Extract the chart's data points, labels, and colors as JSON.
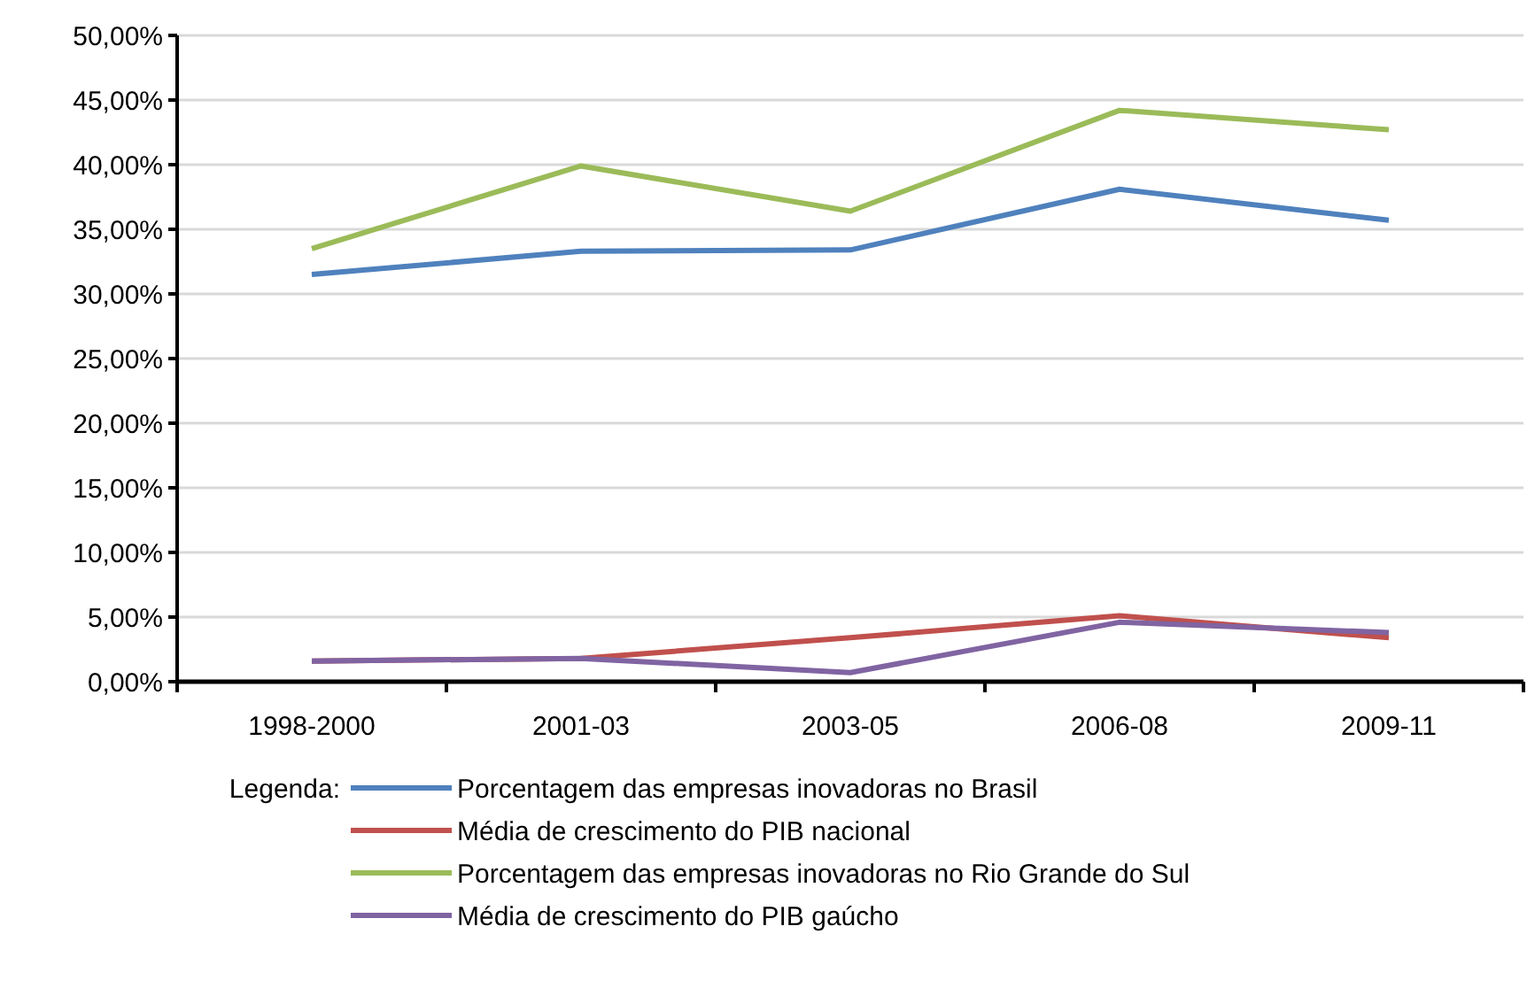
{
  "chart_data": {
    "type": "line",
    "categories": [
      "1998-2000",
      "2001-03",
      "2003-05",
      "2006-08",
      "2009-11"
    ],
    "series": [
      {
        "name": "Porcentagem das empresas inovadoras no Brasil",
        "color": "#4f81bd",
        "values": [
          31.5,
          33.3,
          33.4,
          38.1,
          35.7
        ]
      },
      {
        "name": "Média de crescimento do PIB nacional",
        "color": "#c0504d",
        "values": [
          1.6,
          1.8,
          3.4,
          5.1,
          3.4
        ]
      },
      {
        "name": "Porcentagem das empresas inovadoras no Rio Grande do Sul",
        "color": "#9bbb59",
        "values": [
          33.5,
          39.9,
          36.4,
          44.2,
          42.7
        ]
      },
      {
        "name": "Média de crescimento do PIB gaúcho",
        "color": "#8064a2",
        "values": [
          1.6,
          1.8,
          0.7,
          4.6,
          3.8
        ]
      }
    ],
    "ylim": [
      0,
      50
    ],
    "yticks": [
      {
        "value": 0,
        "label": "0,00%"
      },
      {
        "value": 5,
        "label": "5,00%"
      },
      {
        "value": 10,
        "label": "10,00%"
      },
      {
        "value": 15,
        "label": "15,00%"
      },
      {
        "value": 20,
        "label": "20,00%"
      },
      {
        "value": 25,
        "label": "25,00%"
      },
      {
        "value": 30,
        "label": "30,00%"
      },
      {
        "value": 35,
        "label": "35,00%"
      },
      {
        "value": 40,
        "label": "40,00%"
      },
      {
        "value": 45,
        "label": "45,00%"
      },
      {
        "value": 50,
        "label": "50,00%"
      }
    ],
    "grid": "y",
    "legend": "bottom",
    "legend_title": "Legenda:",
    "marker": "none",
    "line_style": "solid"
  }
}
